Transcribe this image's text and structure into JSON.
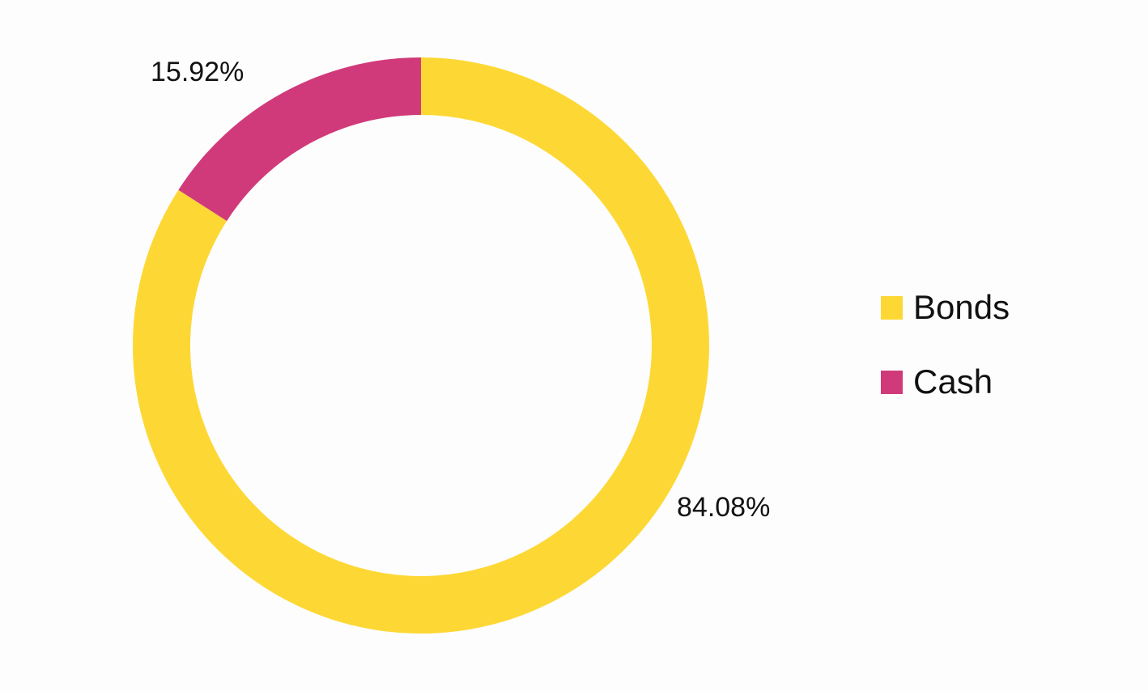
{
  "chart_data": {
    "type": "pie",
    "variant": "donut",
    "title": "",
    "categories": [
      "Bonds",
      "Cash"
    ],
    "values": [
      84.08,
      15.92
    ],
    "labels": [
      "84.08%",
      "15.92%"
    ],
    "colors": [
      "#FDD835",
      "#D03A7A"
    ],
    "start_angle_deg": 0,
    "direction": "clockwise",
    "legend_position": "right"
  },
  "legend": {
    "items": [
      {
        "label": "Bonds",
        "color": "#FDD835"
      },
      {
        "label": "Cash",
        "color": "#D03A7A"
      }
    ]
  }
}
